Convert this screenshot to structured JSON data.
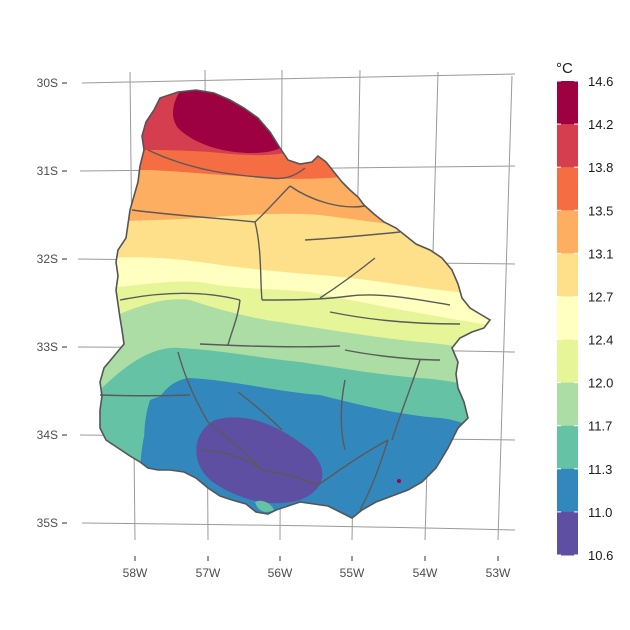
{
  "map": {
    "type": "choropleth-contour",
    "lat_labels": [
      "30S",
      "31S",
      "32S",
      "33S",
      "34S",
      "35S"
    ],
    "lon_labels": [
      "58W",
      "57W",
      "56W",
      "55W",
      "54W",
      "53W"
    ],
    "lat_values": [
      -30,
      -31,
      -32,
      -33,
      -34,
      -35
    ],
    "lon_values": [
      -58,
      -57,
      -56,
      -55,
      -54,
      -53
    ]
  },
  "legend": {
    "title": "°C",
    "breaks": [
      "14.6",
      "14.2",
      "13.8",
      "13.5",
      "13.1",
      "12.7",
      "12.4",
      "12.0",
      "11.7",
      "11.3",
      "11.0",
      "10.6"
    ],
    "colors": [
      "#9e0142",
      "#d53e4f",
      "#f46d43",
      "#fdae61",
      "#fee08b",
      "#ffffbf",
      "#e6f598",
      "#abdda4",
      "#66c2a5",
      "#3288bd",
      "#5e4fa2"
    ]
  }
}
